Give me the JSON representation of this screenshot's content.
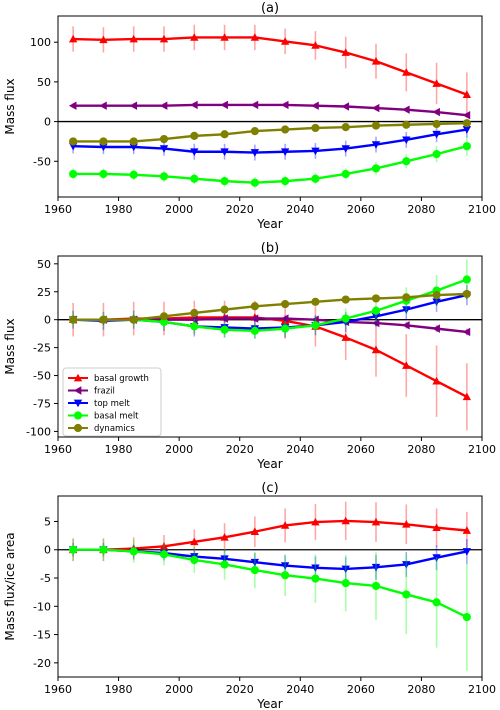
{
  "colors": {
    "basal_growth": "#ff0000",
    "frazil": "#800080",
    "top_melt": "#0000ff",
    "basal_melt": "#00ff00",
    "dynamics": "#808000",
    "errorbar_alpha": "0.35"
  },
  "legend_entries": [
    "basal growth",
    "frazil",
    "top melt",
    "basal melt",
    "dynamics"
  ],
  "chart_data": [
    {
      "type": "line",
      "title": "(a)",
      "xlabel": "Year",
      "ylabel": "Mass flux",
      "xlim": [
        1960,
        2100
      ],
      "ylim": [
        -95,
        133
      ],
      "xticks": [
        1960,
        1980,
        2000,
        2020,
        2040,
        2060,
        2080,
        2100
      ],
      "yticks": [
        -50,
        0,
        50,
        100
      ],
      "zero_line": true,
      "legend": "none",
      "x": [
        1965,
        1975,
        1985,
        1995,
        2005,
        2015,
        2025,
        2035,
        2045,
        2055,
        2065,
        2075,
        2085,
        2095
      ],
      "series": [
        {
          "name": "basal growth",
          "color_key": "basal_growth",
          "marker": "triangle-up",
          "values": [
            104,
            103,
            104,
            104,
            106,
            106,
            106,
            101,
            96,
            87,
            76,
            62,
            48,
            34
          ],
          "err": [
            16,
            16,
            16,
            16,
            16,
            16,
            16,
            16,
            18,
            20,
            22,
            24,
            26,
            28
          ]
        },
        {
          "name": "frazil",
          "color_key": "frazil",
          "marker": "triangle-left",
          "values": [
            20,
            20,
            20,
            20,
            21,
            21,
            21,
            21,
            20,
            19,
            17,
            15,
            12,
            8
          ],
          "err": [
            3,
            3,
            3,
            3,
            3,
            3,
            3,
            3,
            3,
            3,
            3,
            3,
            3,
            3
          ]
        },
        {
          "name": "top melt",
          "color_key": "top_melt",
          "marker": "triangle-down",
          "values": [
            -31,
            -32,
            -32,
            -34,
            -38,
            -38,
            -39,
            -38,
            -37,
            -34,
            -29,
            -23,
            -16,
            -10
          ],
          "err": [
            9,
            9,
            9,
            9,
            10,
            10,
            10,
            10,
            10,
            10,
            10,
            10,
            10,
            10
          ]
        },
        {
          "name": "basal melt",
          "color_key": "basal_melt",
          "marker": "circle",
          "values": [
            -66,
            -66,
            -67,
            -69,
            -72,
            -75,
            -77,
            -75,
            -72,
            -66,
            -59,
            -50,
            -41,
            -31
          ],
          "err": [
            7,
            7,
            7,
            7,
            7,
            7,
            7,
            7,
            7,
            7,
            8,
            9,
            10,
            12
          ]
        },
        {
          "name": "dynamics",
          "color_key": "dynamics",
          "marker": "circle",
          "values": [
            -25,
            -25,
            -25,
            -22,
            -18,
            -16,
            -12,
            -10,
            -8,
            -7,
            -5,
            -4,
            -3,
            -2
          ],
          "err": [
            3,
            3,
            3,
            3,
            3,
            3,
            3,
            3,
            3,
            3,
            3,
            3,
            3,
            3
          ]
        }
      ]
    },
    {
      "type": "line",
      "title": "(b)",
      "xlabel": "Year",
      "ylabel": "Mass flux",
      "xlim": [
        1960,
        2100
      ],
      "ylim": [
        -105,
        57
      ],
      "xticks": [
        1960,
        1980,
        2000,
        2020,
        2040,
        2060,
        2080,
        2100
      ],
      "yticks": [
        -100,
        -75,
        -50,
        -25,
        0,
        25,
        50
      ],
      "zero_line": true,
      "legend": "lower-left",
      "x": [
        1965,
        1975,
        1985,
        1995,
        2005,
        2015,
        2025,
        2035,
        2045,
        2055,
        2065,
        2075,
        2085,
        2095
      ],
      "series": [
        {
          "name": "basal growth",
          "color_key": "basal_growth",
          "marker": "triangle-up",
          "values": [
            0,
            0,
            1,
            1,
            2,
            2,
            2,
            -1,
            -6,
            -16,
            -27,
            -41,
            -55,
            -69
          ],
          "err": [
            15,
            15,
            15,
            15,
            15,
            15,
            15,
            16,
            18,
            20,
            24,
            28,
            32,
            30
          ]
        },
        {
          "name": "frazil",
          "color_key": "frazil",
          "marker": "triangle-left",
          "values": [
            0,
            0,
            0,
            0,
            0,
            1,
            1,
            1,
            0,
            -2,
            -3,
            -5,
            -8,
            -11
          ],
          "err": [
            3,
            3,
            3,
            3,
            3,
            3,
            3,
            3,
            3,
            3,
            3,
            3,
            3,
            3
          ]
        },
        {
          "name": "top melt",
          "color_key": "top_melt",
          "marker": "triangle-down",
          "values": [
            0,
            -1,
            0,
            -2,
            -6,
            -7,
            -8,
            -7,
            -5,
            -2,
            3,
            9,
            16,
            22
          ],
          "err": [
            8,
            8,
            8,
            8,
            9,
            9,
            9,
            9,
            9,
            9,
            9,
            9,
            9,
            9
          ]
        },
        {
          "name": "basal melt",
          "color_key": "basal_melt",
          "marker": "circle",
          "values": [
            0,
            0,
            0,
            -2,
            -6,
            -9,
            -10,
            -8,
            -5,
            1,
            8,
            17,
            26,
            36
          ],
          "err": [
            7,
            7,
            7,
            7,
            7,
            7,
            7,
            7,
            8,
            9,
            10,
            12,
            14,
            18
          ]
        },
        {
          "name": "dynamics",
          "color_key": "dynamics",
          "marker": "circle",
          "values": [
            0,
            0,
            0,
            3,
            6,
            9,
            12,
            14,
            16,
            18,
            19,
            20,
            22,
            23
          ],
          "err": [
            3,
            3,
            3,
            3,
            3,
            3,
            3,
            3,
            3,
            3,
            3,
            3,
            3,
            3
          ]
        }
      ]
    },
    {
      "type": "line",
      "title": "(c)",
      "xlabel": "Year",
      "ylabel": "Mass flux/ice area",
      "xlim": [
        1960,
        2100
      ],
      "ylim": [
        -22.5,
        9.5
      ],
      "xticks": [
        1960,
        1980,
        2000,
        2020,
        2040,
        2060,
        2080,
        2100
      ],
      "yticks": [
        -20,
        -15,
        -10,
        -5,
        0,
        5
      ],
      "zero_line": true,
      "legend": "none",
      "x": [
        1965,
        1975,
        1985,
        1995,
        2005,
        2015,
        2025,
        2035,
        2045,
        2055,
        2065,
        2075,
        2085,
        2095
      ],
      "series": [
        {
          "name": "basal growth",
          "color_key": "basal_growth",
          "marker": "triangle-up",
          "values": [
            0,
            0,
            0.2,
            0.6,
            1.4,
            2.2,
            3.2,
            4.3,
            4.9,
            5.1,
            4.9,
            4.5,
            3.9,
            3.4
          ],
          "err": [
            2,
            2,
            2,
            2,
            2.2,
            2.5,
            2.7,
            3,
            3.2,
            3.4,
            3.5,
            3.5,
            3.4,
            3.3
          ]
        },
        {
          "name": "top melt",
          "color_key": "top_melt",
          "marker": "triangle-down",
          "values": [
            0,
            0,
            -0.3,
            -0.6,
            -1.2,
            -1.6,
            -2.2,
            -2.8,
            -3.2,
            -3.4,
            -3.1,
            -2.6,
            -1.4,
            -0.3
          ],
          "err": [
            1.2,
            1.2,
            1.2,
            1.3,
            1.4,
            1.5,
            1.6,
            1.8,
            2,
            2.1,
            2.2,
            2.2,
            2.2,
            2.2
          ]
        },
        {
          "name": "basal melt",
          "color_key": "basal_melt",
          "marker": "circle",
          "values": [
            0,
            0,
            -0.3,
            -0.8,
            -1.8,
            -2.6,
            -3.6,
            -4.5,
            -5.1,
            -5.9,
            -6.4,
            -7.9,
            -9.3,
            -11.9
          ],
          "err": [
            2,
            2,
            2,
            2,
            2.3,
            2.7,
            3.2,
            3.7,
            4.3,
            5,
            6,
            7,
            8,
            9.5
          ]
        }
      ]
    }
  ]
}
